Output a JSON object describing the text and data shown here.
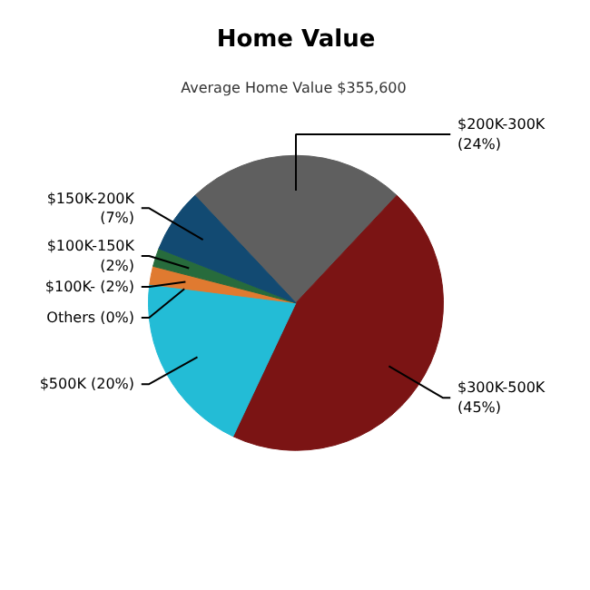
{
  "chart_data": {
    "type": "pie",
    "title": "Home Value",
    "subtitle": "Average Home Value  $355,600",
    "categories": [
      "$200K-300K",
      "$300K-500K",
      "$500K",
      "Others",
      "$100K-",
      "$100K-150K",
      "$150K-200K"
    ],
    "values": [
      24,
      45,
      20,
      0,
      2,
      2,
      7
    ],
    "colors": [
      "#5f5f5f",
      "#7b1414",
      "#23bcd6",
      "#9a9a9a",
      "#e07a30",
      "#276b3c",
      "#124a72"
    ],
    "value_labels": [
      "(24%)",
      "(45%)",
      "(20%)",
      "(0%)",
      "(2%)",
      "(2%)",
      "(7%)"
    ]
  }
}
